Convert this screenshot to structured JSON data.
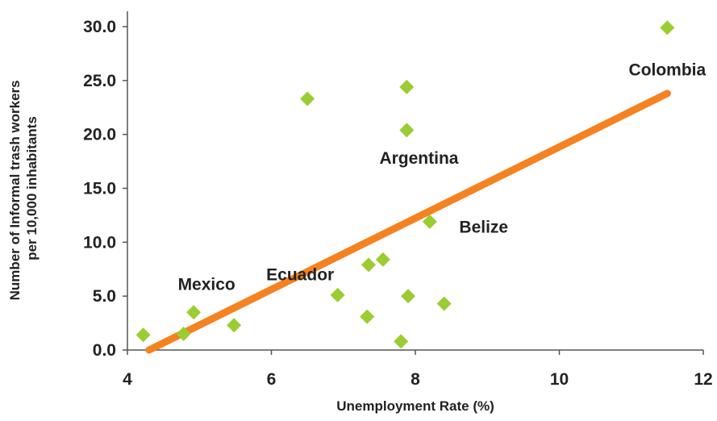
{
  "chart_data": {
    "type": "scatter",
    "xlabel": "Unemployment Rate (%)",
    "ylabel_lines": [
      "Number of Informal trash workers",
      "per 10,000 inhabitants"
    ],
    "xlim": [
      4,
      12
    ],
    "ylim": [
      0,
      30
    ],
    "x_ticks": [
      4,
      6,
      8,
      10,
      12
    ],
    "x_tick_labels": [
      "4",
      "6",
      "8",
      "10",
      "12"
    ],
    "y_ticks": [
      0,
      5,
      10,
      15,
      20,
      25,
      30
    ],
    "y_tick_labels": [
      "0.0",
      "5.0",
      "10.0",
      "15.0",
      "20.0",
      "25.0",
      "30.0"
    ],
    "grid": false,
    "series": [
      {
        "marker": "diamond",
        "color": "#9ACD32",
        "points": [
          {
            "x": 4.22,
            "y": 1.4
          },
          {
            "x": 4.78,
            "y": 1.5
          },
          {
            "x": 4.92,
            "y": 3.5
          },
          {
            "x": 5.48,
            "y": 2.3
          },
          {
            "x": 6.5,
            "y": 23.3
          },
          {
            "x": 6.92,
            "y": 5.1
          },
          {
            "x": 7.33,
            "y": 3.1
          },
          {
            "x": 7.35,
            "y": 7.9
          },
          {
            "x": 7.55,
            "y": 8.4
          },
          {
            "x": 7.8,
            "y": 0.8
          },
          {
            "x": 7.88,
            "y": 24.4
          },
          {
            "x": 7.88,
            "y": 20.4
          },
          {
            "x": 7.9,
            "y": 5.0
          },
          {
            "x": 8.2,
            "y": 11.9
          },
          {
            "x": 8.4,
            "y": 4.3
          },
          {
            "x": 11.5,
            "y": 29.9
          }
        ]
      }
    ],
    "trendline": {
      "color": "#F58220",
      "points": [
        {
          "x": 4.3,
          "y": 0.0
        },
        {
          "x": 11.5,
          "y": 23.8
        }
      ]
    },
    "annotations": [
      {
        "text": "Colombia",
        "x": 11.5,
        "y": 26.0
      },
      {
        "text": "Argentina",
        "x": 8.05,
        "y": 17.8
      },
      {
        "text": "Belize",
        "x": 8.95,
        "y": 11.4
      },
      {
        "text": "Ecuador",
        "x": 6.4,
        "y": 7.0
      },
      {
        "text": "Mexico",
        "x": 5.1,
        "y": 6.1
      }
    ]
  }
}
